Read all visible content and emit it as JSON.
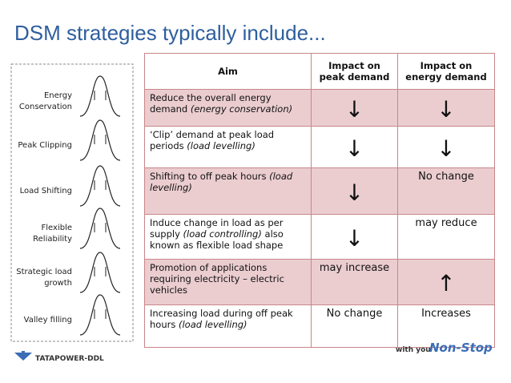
{
  "header": {
    "title": "DSM strategies typically include..."
  },
  "diagram": {
    "labels": [
      [
        "Energy",
        "Conservation"
      ],
      [
        "Peak Clipping"
      ],
      [
        "Load Shifting"
      ],
      [
        "Flexible",
        "Reliability"
      ],
      [
        "Strategic load",
        "growth"
      ],
      [
        "Valley filling"
      ]
    ]
  },
  "table": {
    "columns": [
      "Aim",
      "Impact on peak demand",
      "Impact on energy demand"
    ],
    "rows": [
      [
        [
          {
            "text": "Reduce the overall energy demand",
            "italic": false
          },
          {
            "text": "(energy conservation)",
            "italic": true
          }
        ],
        "↓",
        "↓"
      ],
      [
        [
          {
            "text": "‘Clip’ demand at peak load periods",
            "italic": false
          },
          {
            "text": "(load levelling)",
            "italic": true
          }
        ],
        "↓",
        "↓"
      ],
      [
        [
          {
            "text": "Shifting to off peak hours",
            "italic": false
          },
          {
            "text": "(load levelling)",
            "italic": true
          }
        ],
        "↓",
        "No change"
      ],
      [
        [
          {
            "text": "Induce change in load as per supply",
            "italic": false
          },
          {
            "text": "(load controlling)",
            "italic": true
          },
          {
            "text": "also known as flexible load shape",
            "italic": false
          }
        ],
        "↓",
        "may reduce"
      ],
      [
        [
          {
            "text": "Promotion of applications requiring electricity – electric vehicles",
            "italic": false
          }
        ],
        "may increase",
        "↑"
      ],
      [
        [
          {
            "text": "Increasing load during off peak hours",
            "italic": false
          },
          {
            "text": "(load levelling)",
            "italic": true
          }
        ],
        "No change",
        "Increases"
      ]
    ]
  },
  "footer": {
    "logo": "TATAPOWER-DDL",
    "tagline": "with you",
    "slogan": "Non-Stop"
  }
}
